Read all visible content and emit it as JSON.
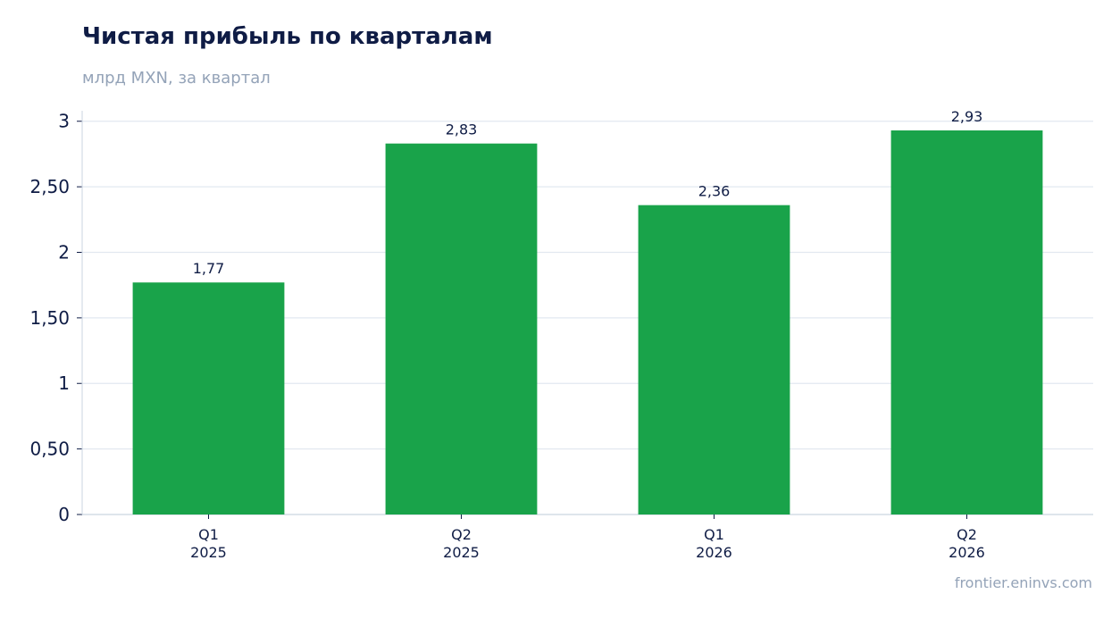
{
  "header": {
    "title": "Чистая прибыль по кварталам",
    "subtitle": "млрд MXN, за квартал"
  },
  "footer": {
    "source": "frontier.eninvs.com"
  },
  "colors": {
    "bar": "#19a34a",
    "grid": "#e2e8f0",
    "axis": "#cbd5e1",
    "text": "#0f1c45",
    "muted": "#94a3b8"
  },
  "chart_data": {
    "type": "bar",
    "title": "Чистая прибыль по кварталам",
    "subtitle": "млрд MXN, за квартал",
    "xlabel": "",
    "ylabel": "",
    "categories": [
      [
        "Q1",
        "2025"
      ],
      [
        "Q2",
        "2025"
      ],
      [
        "Q1",
        "2026"
      ],
      [
        "Q2",
        "2026"
      ]
    ],
    "values": [
      1.77,
      2.83,
      2.36,
      2.93
    ],
    "value_labels": [
      "1,77",
      "2,83",
      "2,36",
      "2,93"
    ],
    "ylim": [
      0,
      3.08
    ],
    "yticks": [
      0,
      0.5,
      1,
      1.5,
      2,
      2.5,
      3
    ],
    "ytick_labels": [
      "0",
      "0,50",
      "1",
      "1,50",
      "2",
      "2,50",
      "3"
    ],
    "grid": true,
    "legend": "none"
  }
}
